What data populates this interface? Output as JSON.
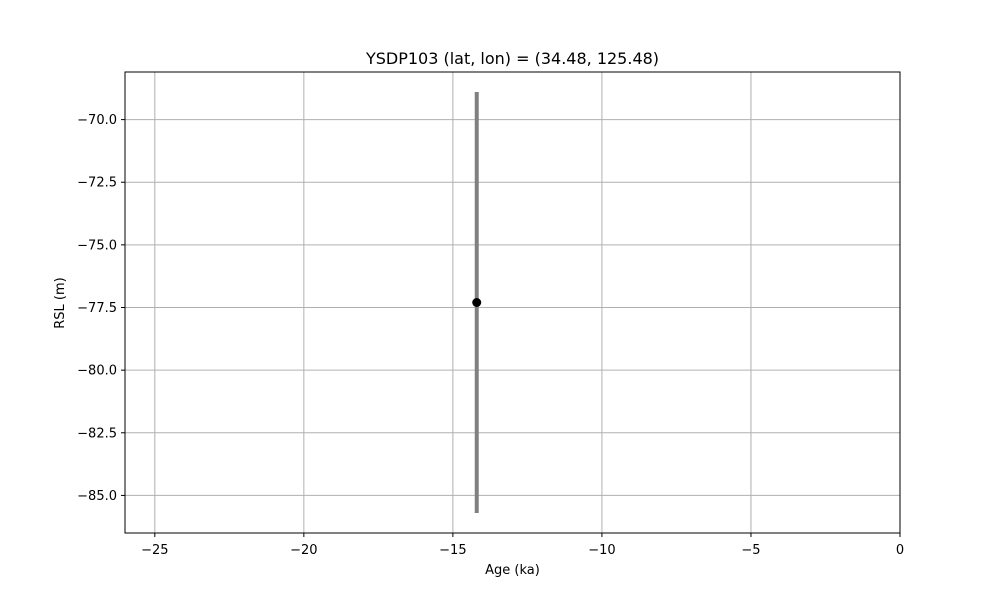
{
  "chart_data": {
    "type": "scatter",
    "title": "YSDP103 (lat, lon) = (34.48, 125.48)",
    "xlabel": "Age (ka)",
    "ylabel": "RSL (m)",
    "xlim": [
      -26,
      0
    ],
    "ylim": [
      -86.5,
      -68.1
    ],
    "xticks": [
      -25,
      -20,
      -15,
      -10,
      -5,
      0
    ],
    "yticks": [
      -70.0,
      -72.5,
      -75.0,
      -77.5,
      -80.0,
      -82.5,
      -85.0
    ],
    "xtick_labels": [
      "−25",
      "−20",
      "−15",
      "−10",
      "−5",
      "0"
    ],
    "ytick_labels": [
      "−70.0",
      "−72.5",
      "−75.0",
      "−77.5",
      "−80.0",
      "−82.5",
      "−85.0"
    ],
    "grid": true,
    "points": [
      {
        "x": -14.2,
        "y": -77.3,
        "y_err_low": -85.7,
        "y_err_high": -68.9
      }
    ],
    "colors": {
      "point": "#000000",
      "error_bar": "#808080",
      "grid": "#b0b0b0",
      "axes": "#000000"
    }
  }
}
